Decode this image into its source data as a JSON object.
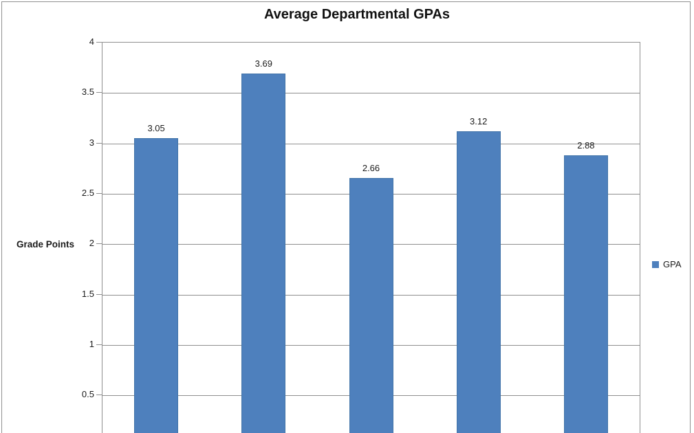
{
  "chart_data": {
    "type": "bar",
    "title": "Average Departmental GPAs",
    "ylabel": "Grade Points",
    "xlabel": "",
    "series": [
      {
        "name": "GPA",
        "values": [
          3.05,
          3.69,
          2.66,
          3.12,
          2.88
        ]
      }
    ],
    "data_labels": [
      "3.05",
      "3.69",
      "2.66",
      "3.12",
      "2.88"
    ],
    "yticks": [
      "4",
      "3.5",
      "3",
      "2.5",
      "2",
      "1.5",
      "1",
      "0.5"
    ],
    "ylim": [
      0,
      4
    ],
    "grid": true,
    "legend_position": "right",
    "note": "x-axis category labels are cropped out of view at the bottom edge"
  },
  "legend": {
    "label": "GPA"
  },
  "colors": {
    "bar_fill": "#4E80BD",
    "bar_border": "#4274A8",
    "gridline": "#8E8E8E",
    "text": "#1A1A1A"
  }
}
